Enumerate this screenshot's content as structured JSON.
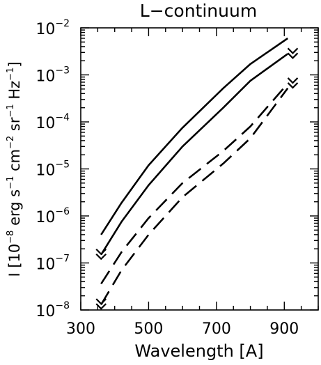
{
  "chart_data": {
    "type": "line",
    "title": "L−continuum",
    "xlabel": "Wavelength [A]",
    "ylabel_parts": {
      "prefix": "I [10",
      "exp1": "−8",
      "erg": " erg s",
      "exp2": "−1",
      "cm": " cm",
      "exp3": "−2",
      "sr": " sr",
      "exp4": "−1",
      "hz": " Hz",
      "exp5": "−1",
      "suffix": "]"
    },
    "x_axis": {
      "min": 300,
      "max": 1000,
      "ticks": [
        300,
        500,
        700,
        900
      ],
      "tick_labels": [
        "300",
        "500",
        "700",
        "900"
      ],
      "scale": "linear"
    },
    "y_axis": {
      "scale": "log",
      "min": 1e-08,
      "max": 0.01,
      "ticks": [
        {
          "value": 1e-08,
          "mantissa": "10",
          "exp": "−8"
        },
        {
          "value": 1e-07,
          "mantissa": "10",
          "exp": "−7"
        },
        {
          "value": 1e-06,
          "mantissa": "10",
          "exp": "−6"
        },
        {
          "value": 1e-05,
          "mantissa": "10",
          "exp": "−5"
        },
        {
          "value": 0.0001,
          "mantissa": "10",
          "exp": "−4"
        },
        {
          "value": 0.001,
          "mantissa": "10",
          "exp": "−3"
        },
        {
          "value": 0.01,
          "mantissa": "10",
          "exp": "−2"
        }
      ]
    },
    "series": [
      {
        "style": "solid",
        "x": [
          360,
          420,
          500,
          600,
          720,
          800,
          910
        ],
        "y": [
          4e-07,
          1.9e-06,
          1.2e-05,
          7.5e-05,
          0.00052,
          0.0017,
          0.006
        ]
      },
      {
        "style": "solid",
        "x": [
          360,
          420,
          500,
          600,
          720,
          800,
          910
        ],
        "y": [
          1.5e-07,
          7.5e-07,
          4.5e-06,
          3e-05,
          0.0002,
          0.00075,
          0.0028
        ]
      },
      {
        "style": "dashed",
        "x": [
          360,
          420,
          500,
          600,
          720,
          800,
          910
        ],
        "y": [
          3.6e-08,
          1.7e-07,
          9e-07,
          5e-06,
          2.4e-05,
          8e-05,
          0.00065
        ]
      },
      {
        "style": "dashed",
        "x": [
          360,
          420,
          500,
          600,
          720,
          800,
          910
        ],
        "y": [
          1.3e-08,
          7e-08,
          4e-07,
          2.5e-06,
          1.3e-05,
          4.5e-05,
          0.00052
        ]
      }
    ],
    "end_markers": [
      {
        "x": 360,
        "y": 1.6e-07
      },
      {
        "x": 360,
        "y": 1.4e-08
      },
      {
        "x": 925,
        "y": 0.003
      },
      {
        "x": 925,
        "y": 0.0007
      }
    ],
    "grid": false,
    "legend": "none",
    "colors": {
      "line": "#000000",
      "background": "#ffffff"
    }
  }
}
